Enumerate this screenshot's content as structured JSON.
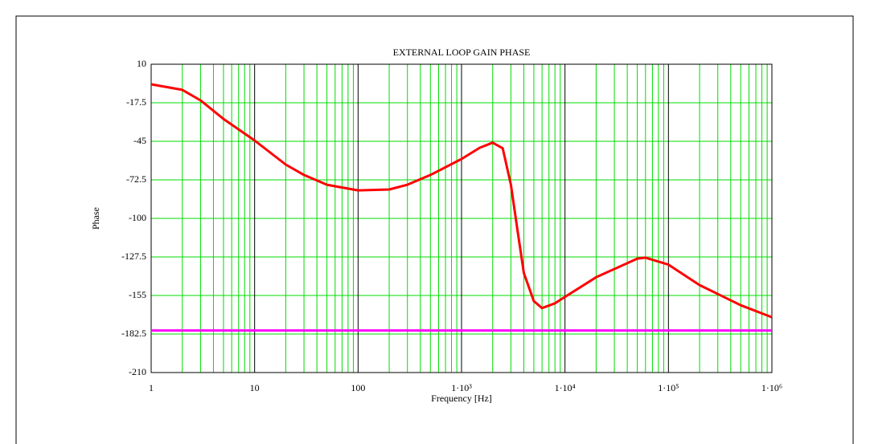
{
  "chart_data": {
    "type": "line",
    "title": "EXTERNAL LOOP GAIN PHASE",
    "x_label": "Frequency [Hz]",
    "y_label": "Phase",
    "x_scale": "log",
    "x": [
      1,
      2,
      3,
      5,
      10,
      20,
      30,
      50,
      100,
      200,
      300,
      500,
      1000,
      1500,
      2000,
      2500,
      3000,
      3500,
      4000,
      5000,
      6000,
      8000,
      10000,
      20000,
      50000,
      60000,
      100000,
      200000,
      500000,
      1000000
    ],
    "series": [
      {
        "name": "Phase",
        "color": "#ff0000",
        "values": [
          -4.3,
          -8.3,
          -15.8,
          -29,
          -44.4,
          -61.6,
          -69,
          -76,
          -80,
          -79.4,
          -76,
          -69,
          -57.6,
          -49.6,
          -46,
          -50,
          -76,
          -110,
          -139,
          -159,
          -164,
          -160.6,
          -156,
          -142,
          -128.7,
          -128,
          -133,
          -147.6,
          -162,
          -170.5
        ]
      }
    ],
    "hlines": [
      {
        "value": -180,
        "color": "#ff00ff"
      }
    ],
    "xlim": [
      1,
      1000000
    ],
    "xticks": [
      1,
      10,
      100,
      {
        "value": 1000,
        "label": "1·10³"
      },
      {
        "value": 10000,
        "label": "1·10⁴"
      },
      {
        "value": 100000,
        "label": "1·10⁵"
      },
      {
        "value": 1000000,
        "label": "1·10⁶"
      }
    ],
    "ylim": [
      -210,
      10
    ],
    "yticks": [
      10,
      -17.5,
      -45,
      -72.5,
      -100,
      -127.5,
      -155,
      -182.5,
      -210
    ],
    "grid": true,
    "grid_color": "#00dd00",
    "major_grid_color": "#000000"
  }
}
